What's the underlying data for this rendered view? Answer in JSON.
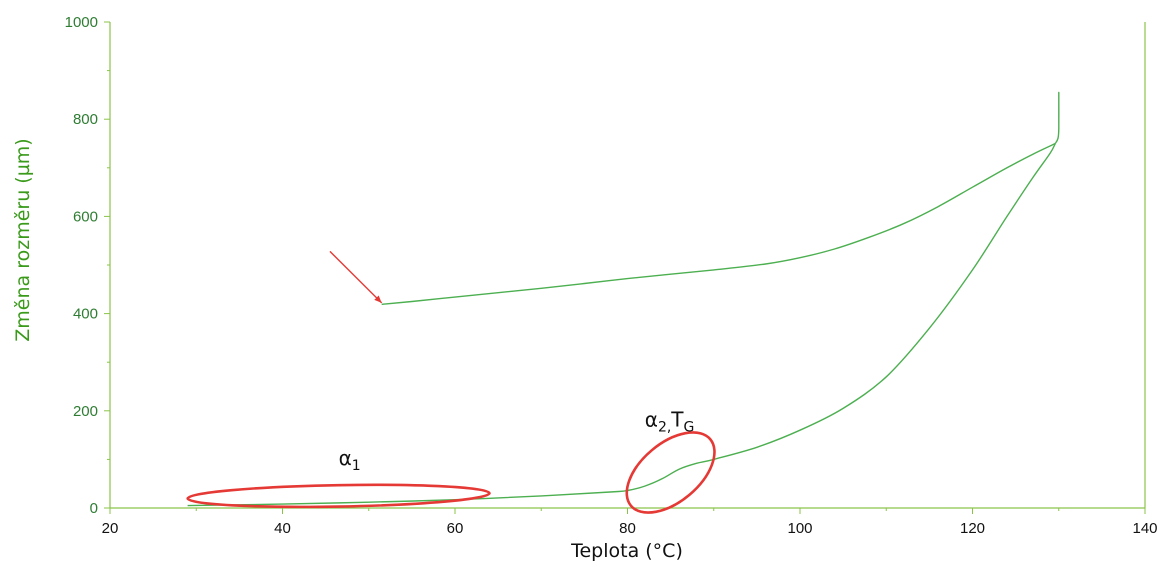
{
  "chart_data": {
    "type": "line",
    "title": "",
    "xlabel": "Teplota (°C)",
    "ylabel": "Změna rozměru (µm)",
    "xlim": [
      20,
      140
    ],
    "ylim": [
      0,
      1000
    ],
    "x_ticks": [
      "20",
      "40",
      "60",
      "80",
      "100",
      "120",
      "140"
    ],
    "y_ticks": [
      "0",
      "200",
      "400",
      "600",
      "800",
      "1000"
    ],
    "grid": false,
    "colors": {
      "curve": "#4caf50",
      "axis": "#8bc34a",
      "tick_text": "#2e7d32",
      "ylabel": "#3a9a1a",
      "annotation": "#e53935"
    },
    "series": [
      {
        "segment": "heating",
        "x": [
          29,
          40,
          50,
          60,
          70,
          78,
          80,
          82,
          84,
          86,
          88,
          90,
          95,
          100,
          105,
          110,
          115,
          120,
          124,
          127,
          129,
          129.6
        ],
        "y": [
          5,
          8,
          12,
          17,
          25,
          33,
          36,
          45,
          60,
          80,
          92,
          100,
          125,
          160,
          205,
          270,
          370,
          490,
          600,
          680,
          730,
          750
        ]
      },
      {
        "segment": "spike",
        "x": [
          129.6,
          129.9,
          130,
          130,
          130
        ],
        "y": [
          750,
          760,
          780,
          855,
          790
        ]
      },
      {
        "segment": "cooling",
        "x": [
          129.6,
          127,
          124,
          120,
          116,
          112,
          108,
          104,
          100,
          96,
          90,
          85,
          80,
          75,
          70,
          65,
          60,
          55,
          52,
          51.5
        ],
        "y": [
          750,
          728,
          700,
          660,
          620,
          585,
          557,
          533,
          515,
          502,
          490,
          481,
          472,
          462,
          452,
          443,
          434,
          425,
          420,
          419
        ]
      }
    ],
    "annotations": [
      {
        "label": "α",
        "sub": "1",
        "cx": 46.5,
        "cy": 25,
        "rx": 17.5,
        "ry": 22,
        "lx": 46.5,
        "ly": 88
      },
      {
        "label": "α",
        "sub": "2,",
        "label2": "T",
        "sub2": "G",
        "cx": 85,
        "cy": 73,
        "rx": 6,
        "ry": 60,
        "lx": 82,
        "ly": 168
      }
    ],
    "arrow": {
      "from": [
        45.5,
        528
      ],
      "to": [
        51.5,
        422
      ]
    }
  }
}
